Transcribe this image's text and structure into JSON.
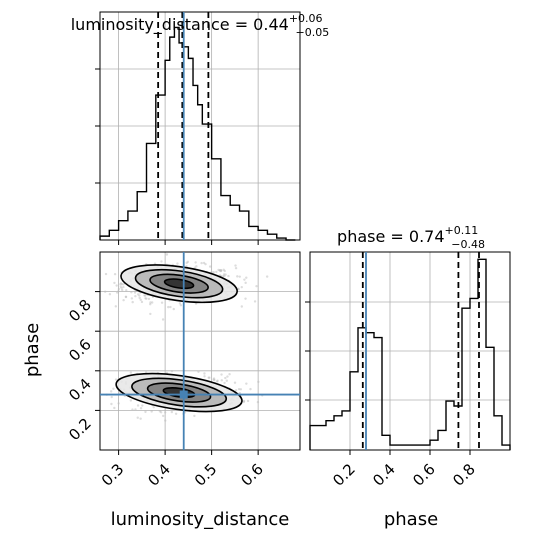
{
  "chart_data": {
    "type": "corner",
    "parameters": [
      "luminosity_distance",
      "phase"
    ],
    "axis_labels": {
      "x": [
        "luminosity_distance",
        "phase"
      ],
      "y": [
        "phase"
      ]
    },
    "ranges": {
      "luminosity_distance": [
        0.26,
        0.69
      ],
      "phase": [
        0.0,
        1.0
      ]
    },
    "ticks": {
      "luminosity_distance": {
        "values": [
          0.3,
          0.4,
          0.5,
          0.6
        ],
        "labels": [
          "0.3",
          "0.4",
          "0.5",
          "0.6"
        ]
      },
      "phase": {
        "values": [
          0.2,
          0.4,
          0.6,
          0.8
        ],
        "labels": [
          "0.2",
          "0.4",
          "0.6",
          "0.8"
        ]
      }
    },
    "titles": [
      {
        "param": "luminosity_distance",
        "text": "luminosity_distance = 0.44",
        "sup": "+0.06",
        "sub": "−0.05"
      },
      {
        "param": "phase",
        "text": "phase = 0.74",
        "sup": "+0.11",
        "sub": "−0.48"
      }
    ],
    "truths": {
      "luminosity_distance": 0.44,
      "phase": 0.28
    },
    "quantiles": {
      "luminosity_distance": [
        0.385,
        0.437,
        0.493
      ],
      "phase": [
        0.264,
        0.742,
        0.845
      ]
    },
    "hist_luminosity_distance": {
      "bin_edges": [
        0.26,
        0.28,
        0.3,
        0.32,
        0.34,
        0.36,
        0.38,
        0.4,
        0.41,
        0.42,
        0.43,
        0.44,
        0.45,
        0.46,
        0.47,
        0.48,
        0.5,
        0.52,
        0.54,
        0.56,
        0.58,
        0.6,
        0.62,
        0.64,
        0.66,
        0.68
      ],
      "counts": [
        0.2,
        0.5,
        1.0,
        1.5,
        2.5,
        5.0,
        7.5,
        9.3,
        10.5,
        11.0,
        10.2,
        10.0,
        9.4,
        8.0,
        7.0,
        6.0,
        4.2,
        2.3,
        1.8,
        1.5,
        0.7,
        0.5,
        0.3,
        0.1,
        0.0
      ]
    },
    "hist_phase": {
      "bin_edges": [
        0.0,
        0.04,
        0.08,
        0.12,
        0.16,
        0.2,
        0.24,
        0.28,
        0.32,
        0.36,
        0.4,
        0.44,
        0.48,
        0.52,
        0.56,
        0.6,
        0.64,
        0.68,
        0.72,
        0.76,
        0.8,
        0.84,
        0.88,
        0.92,
        0.96,
        1.0
      ],
      "counts": [
        0.5,
        0.5,
        0.6,
        0.7,
        0.8,
        1.6,
        2.5,
        2.4,
        2.3,
        0.3,
        0.1,
        0.1,
        0.1,
        0.1,
        0.1,
        0.2,
        0.4,
        1.0,
        0.9,
        2.9,
        3.1,
        3.9,
        2.1,
        0.7,
        0.1
      ]
    },
    "density_2d": {
      "blobs": [
        {
          "luminosity_distance": 0.43,
          "phase": 0.84,
          "spread": [
            0.06,
            0.045
          ],
          "weight": 0.6
        },
        {
          "luminosity_distance": 0.43,
          "phase": 0.29,
          "spread": [
            0.065,
            0.045
          ],
          "weight": 0.4
        }
      ],
      "contour_levels": [
        "0.5σ",
        "1σ",
        "1.5σ",
        "2σ"
      ]
    },
    "grid": true,
    "colors": {
      "truth": "#4682b4",
      "contour": "#000000",
      "scatter": "#bbbbbb",
      "hist": "#000000"
    }
  }
}
